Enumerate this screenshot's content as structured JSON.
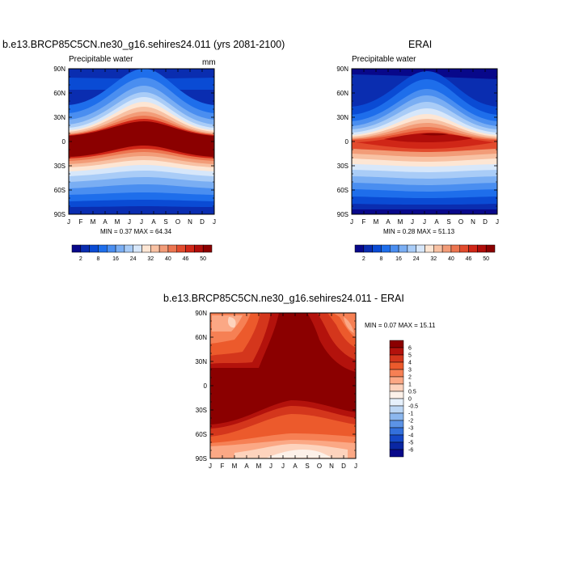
{
  "panel_left": {
    "title": "b.e13.BRCP85C5CN.ne30_g16.sehires24.011 (yrs 2081-2100)",
    "subtitle": "Precipitable water",
    "units": "mm",
    "stats": "MIN =   0.37 MAX =  64.34"
  },
  "panel_right": {
    "title": "ERAI",
    "subtitle": "Precipitable water",
    "stats": "MIN =   0.28 MAX =  51.13"
  },
  "panel_diff": {
    "title": "b.e13.BRCP85C5CN.ne30_g16.sehires24.011 - ERAI",
    "stats": "MIN =   0.07 MAX =  15.11"
  },
  "axes": {
    "months": [
      "J",
      "F",
      "M",
      "A",
      "M",
      "J",
      "J",
      "A",
      "S",
      "O",
      "N",
      "D",
      "J"
    ],
    "lat_labels": [
      "90N",
      "60N",
      "30N",
      "0",
      "30S",
      "60S",
      "90S"
    ]
  },
  "colorbar_abs": {
    "labels": [
      "2",
      "8",
      "16",
      "24",
      "32",
      "40",
      "46",
      "50"
    ],
    "colors": [
      "#08088a",
      "#0a2db0",
      "#0a4bd4",
      "#1e6eeb",
      "#4a8ef0",
      "#7aaef3",
      "#a9ccf7",
      "#d7e7fa",
      "#fde6d4",
      "#f8c1a3",
      "#f29c78",
      "#ec7550",
      "#e24b2d",
      "#d02617",
      "#b00d0a",
      "#8b0000"
    ]
  },
  "colorbar_diff": {
    "labels": [
      "6",
      "5",
      "4",
      "3",
      "2",
      "1",
      "0.5",
      "0",
      "-0.5",
      "-1",
      "-2",
      "-3",
      "-4",
      "-5",
      "-6"
    ],
    "colors": [
      "#8b0000",
      "#b3120c",
      "#d4361c",
      "#ec5a2c",
      "#f68054",
      "#fba885",
      "#fdd3bd",
      "#fdf1e9",
      "#e6f0fb",
      "#bcd6f4",
      "#8cb7ee",
      "#5c93e6",
      "#3370dc",
      "#1548c7",
      "#0a27a3",
      "#08088a"
    ]
  },
  "chart_data": [
    {
      "type": "heatmap",
      "title": "b.e13.BRCP85C5CN.ne30_g16.sehires24.011 (yrs 2081-2100)",
      "variable": "Precipitable water",
      "units": "mm",
      "x": [
        "J",
        "F",
        "M",
        "A",
        "M",
        "J",
        "J",
        "A",
        "S",
        "O",
        "N",
        "D",
        "J"
      ],
      "y": [
        "90N",
        "60N",
        "30N",
        "0",
        "30S",
        "60S",
        "90S"
      ],
      "min": 0.37,
      "max": 64.34,
      "colorbar_levels": [
        2,
        8,
        16,
        24,
        32,
        40,
        46,
        50
      ]
    },
    {
      "type": "heatmap",
      "title": "ERAI",
      "variable": "Precipitable water",
      "x": [
        "J",
        "F",
        "M",
        "A",
        "M",
        "J",
        "J",
        "A",
        "S",
        "O",
        "N",
        "D",
        "J"
      ],
      "y": [
        "90N",
        "60N",
        "30N",
        "0",
        "30S",
        "60S",
        "90S"
      ],
      "min": 0.28,
      "max": 51.13,
      "colorbar_levels": [
        2,
        8,
        16,
        24,
        32,
        40,
        46,
        50
      ]
    },
    {
      "type": "heatmap",
      "title": "b.e13.BRCP85C5CN.ne30_g16.sehires24.011 - ERAI",
      "x": [
        "J",
        "F",
        "M",
        "A",
        "M",
        "J",
        "J",
        "A",
        "S",
        "O",
        "N",
        "D",
        "J"
      ],
      "y": [
        "90N",
        "60N",
        "30N",
        "0",
        "30S",
        "60S",
        "90S"
      ],
      "min": 0.07,
      "max": 15.11,
      "colorbar_levels": [
        6,
        5,
        4,
        3,
        2,
        1,
        0.5,
        0,
        -0.5,
        -1,
        -2,
        -3,
        -4,
        -5,
        -6
      ]
    }
  ]
}
